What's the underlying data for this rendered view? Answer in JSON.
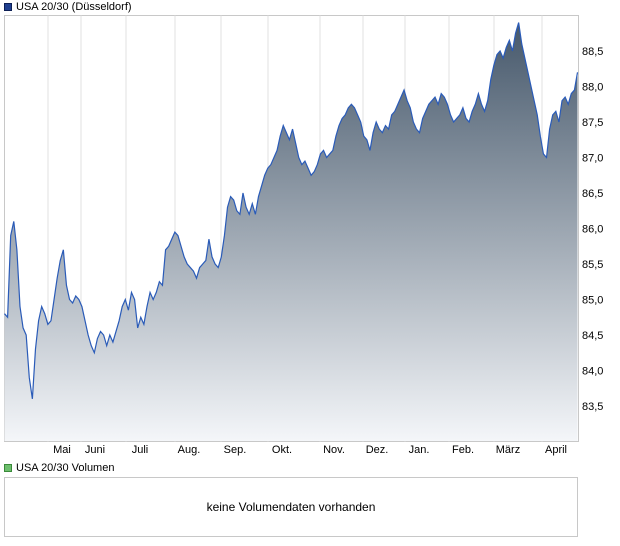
{
  "price_panel": {
    "legend_label": "USA 20/30 (Düsseldorf)",
    "legend_color": "#1f3f8f"
  },
  "volume_panel": {
    "legend_label": "USA 20/30 Volumen",
    "legend_color": "#6dbf6d",
    "empty_message": "keine Volumendaten vorhanden"
  },
  "chart_data": {
    "type": "area",
    "title": "",
    "xlabel": "",
    "ylabel": "",
    "x_tick_labels": [
      "Mai",
      "Juni",
      "Juli",
      "Aug.",
      "Sep.",
      "Okt.",
      "Nov.",
      "Dez.",
      "Jan.",
      "Feb.",
      "März",
      "April"
    ],
    "y_tick_labels": [
      "83,5",
      "84,0",
      "84,5",
      "85,0",
      "85,5",
      "86,0",
      "86,5",
      "87,0",
      "87,5",
      "88,0",
      "88,5"
    ],
    "ylim": [
      83.0,
      89.0
    ],
    "y_axis_side": "right",
    "grid": "vertical",
    "line_color": "#2a5bb8",
    "fill_top_color": "#46586b",
    "fill_bottom_color": "#f4f6f9",
    "series": [
      {
        "values": [
          84.8,
          84.75,
          85.9,
          86.1,
          85.7,
          84.9,
          84.6,
          84.5,
          83.9,
          83.6,
          84.3,
          84.7,
          84.9,
          84.8,
          84.65,
          84.7,
          85.0,
          85.3,
          85.55,
          85.7,
          85.2,
          85.0,
          84.95,
          85.05,
          85.0,
          84.9,
          84.7,
          84.5,
          84.35,
          84.25,
          84.45,
          84.55,
          84.5,
          84.35,
          84.5,
          84.4,
          84.55,
          84.7,
          84.9,
          85.0,
          84.85,
          85.1,
          85.0,
          84.6,
          84.75,
          84.65,
          84.9,
          85.1,
          85.0,
          85.1,
          85.25,
          85.2,
          85.7,
          85.75,
          85.85,
          85.95,
          85.9,
          85.75,
          85.6,
          85.5,
          85.45,
          85.4,
          85.3,
          85.45,
          85.5,
          85.55,
          85.85,
          85.6,
          85.5,
          85.45,
          85.6,
          85.9,
          86.3,
          86.45,
          86.4,
          86.25,
          86.2,
          86.5,
          86.3,
          86.2,
          86.35,
          86.2,
          86.45,
          86.6,
          86.75,
          86.85,
          86.9,
          87.0,
          87.1,
          87.3,
          87.45,
          87.35,
          87.25,
          87.4,
          87.2,
          87.0,
          86.9,
          86.95,
          86.85,
          86.75,
          86.8,
          86.9,
          87.05,
          87.1,
          87.0,
          87.05,
          87.1,
          87.3,
          87.45,
          87.55,
          87.6,
          87.7,
          87.75,
          87.7,
          87.6,
          87.5,
          87.3,
          87.25,
          87.1,
          87.35,
          87.5,
          87.4,
          87.35,
          87.45,
          87.4,
          87.6,
          87.65,
          87.75,
          87.85,
          87.95,
          87.8,
          87.7,
          87.5,
          87.4,
          87.35,
          87.55,
          87.65,
          87.75,
          87.8,
          87.85,
          87.75,
          87.9,
          87.85,
          87.75,
          87.6,
          87.5,
          87.55,
          87.6,
          87.7,
          87.55,
          87.5,
          87.65,
          87.75,
          87.9,
          87.75,
          87.65,
          87.8,
          88.1,
          88.3,
          88.45,
          88.5,
          88.4,
          88.55,
          88.65,
          88.5,
          88.75,
          88.9,
          88.6,
          88.4,
          88.2,
          88.0,
          87.8,
          87.6,
          87.3,
          87.05,
          87.0,
          87.4,
          87.6,
          87.65,
          87.5,
          87.8,
          87.85,
          87.75,
          87.9,
          87.95,
          88.2
        ]
      }
    ]
  }
}
